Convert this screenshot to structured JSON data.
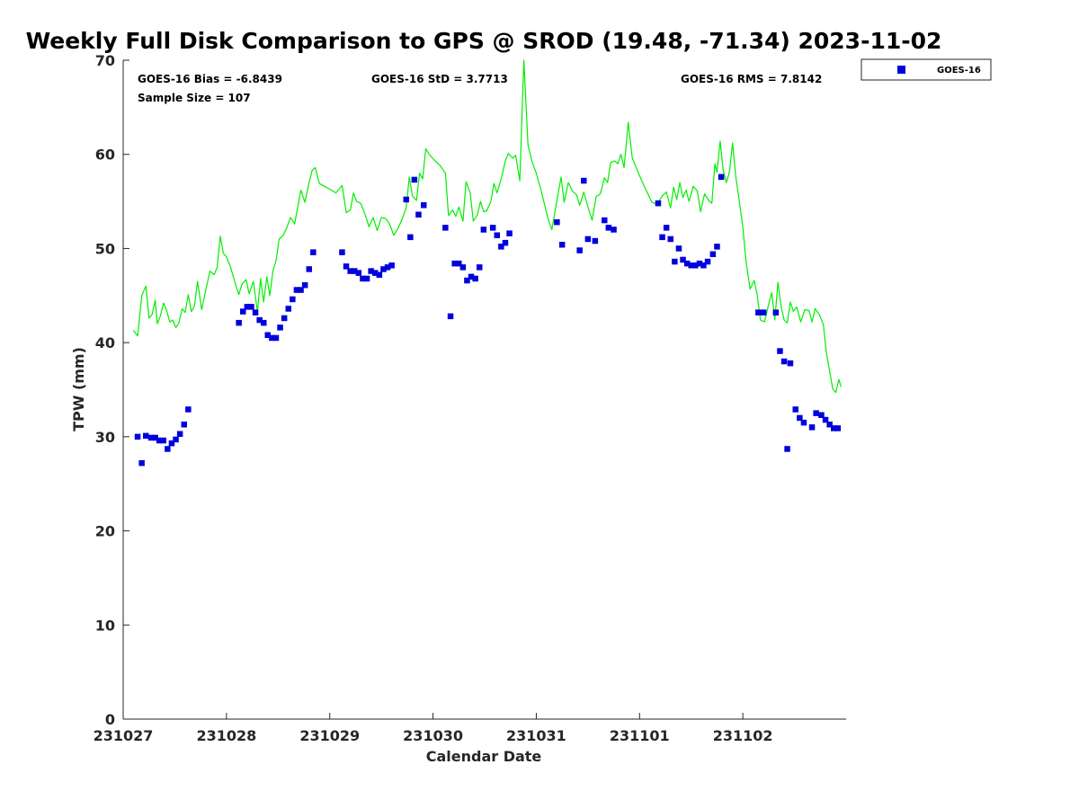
{
  "chart_data": {
    "type": "scatter",
    "title": "Weekly Full Disk Comparison to GPS @ SROD (19.48, -71.34) 2023-11-02",
    "xlabel": "Calendar Date",
    "ylabel": "TPW (mm)",
    "xlim": [
      0,
      7
    ],
    "ylim": [
      0,
      70
    ],
    "x_tick_labels": [
      "231027",
      "231028",
      "231029",
      "231030",
      "231031",
      "231101",
      "231102"
    ],
    "y_ticks": [
      0,
      10,
      20,
      30,
      40,
      50,
      60,
      70
    ],
    "y_tick_labels": [
      "0",
      "10",
      "20",
      "30",
      "40",
      "50",
      "60",
      "70"
    ],
    "stats": {
      "bias": "GOES-16 Bias = -6.8439",
      "std": "GOES-16 StD = 3.7713",
      "rms": "GOES-16 RMS = 7.8142",
      "sample": "Sample Size = 107"
    },
    "legend": {
      "label": "GOES-16",
      "color": "#0000dd",
      "position": "top-right"
    },
    "colors": {
      "goes": "#0000dd",
      "gps": "#00ee00"
    },
    "series": [
      {
        "name": "GOES-16",
        "marker": "square",
        "points": [
          [
            0.14,
            30.0
          ],
          [
            0.18,
            27.2
          ],
          [
            0.22,
            30.1
          ],
          [
            0.27,
            29.9
          ],
          [
            0.31,
            29.9
          ],
          [
            0.35,
            29.6
          ],
          [
            0.39,
            29.6
          ],
          [
            0.43,
            28.7
          ],
          [
            0.47,
            29.3
          ],
          [
            0.51,
            29.7
          ],
          [
            0.55,
            30.3
          ],
          [
            0.59,
            31.3
          ],
          [
            0.63,
            32.9
          ],
          [
            1.12,
            42.1
          ],
          [
            1.16,
            43.3
          ],
          [
            1.2,
            43.8
          ],
          [
            1.24,
            43.8
          ],
          [
            1.28,
            43.2
          ],
          [
            1.32,
            42.4
          ],
          [
            1.36,
            42.1
          ],
          [
            1.4,
            40.8
          ],
          [
            1.44,
            40.5
          ],
          [
            1.48,
            40.5
          ],
          [
            1.52,
            41.6
          ],
          [
            1.56,
            42.6
          ],
          [
            1.6,
            43.6
          ],
          [
            1.64,
            44.6
          ],
          [
            1.68,
            45.6
          ],
          [
            1.72,
            45.6
          ],
          [
            1.76,
            46.1
          ],
          [
            1.8,
            47.8
          ],
          [
            1.84,
            49.6
          ],
          [
            2.12,
            49.6
          ],
          [
            2.16,
            48.1
          ],
          [
            2.2,
            47.6
          ],
          [
            2.24,
            47.6
          ],
          [
            2.28,
            47.4
          ],
          [
            2.32,
            46.8
          ],
          [
            2.36,
            46.8
          ],
          [
            2.4,
            47.6
          ],
          [
            2.44,
            47.4
          ],
          [
            2.48,
            47.2
          ],
          [
            2.52,
            47.8
          ],
          [
            2.56,
            48.0
          ],
          [
            2.6,
            48.2
          ],
          [
            2.74,
            55.2
          ],
          [
            2.78,
            51.2
          ],
          [
            2.82,
            57.3
          ],
          [
            2.86,
            53.6
          ],
          [
            2.91,
            54.6
          ],
          [
            3.12,
            52.2
          ],
          [
            3.17,
            42.8
          ],
          [
            3.21,
            48.4
          ],
          [
            3.25,
            48.4
          ],
          [
            3.29,
            48.0
          ],
          [
            3.33,
            46.6
          ],
          [
            3.37,
            47.0
          ],
          [
            3.41,
            46.8
          ],
          [
            3.45,
            48.0
          ],
          [
            3.49,
            52.0
          ],
          [
            3.58,
            52.2
          ],
          [
            3.62,
            51.4
          ],
          [
            3.66,
            50.2
          ],
          [
            3.7,
            50.6
          ],
          [
            3.74,
            51.6
          ],
          [
            4.2,
            52.8
          ],
          [
            4.25,
            50.4
          ],
          [
            4.42,
            49.8
          ],
          [
            4.46,
            57.2
          ],
          [
            4.5,
            51.0
          ],
          [
            4.57,
            50.8
          ],
          [
            4.66,
            53.0
          ],
          [
            4.7,
            52.2
          ],
          [
            4.75,
            52.0
          ],
          [
            5.18,
            54.8
          ],
          [
            5.22,
            51.2
          ],
          [
            5.26,
            52.2
          ],
          [
            5.3,
            51.0
          ],
          [
            5.34,
            48.6
          ],
          [
            5.38,
            50.0
          ],
          [
            5.42,
            48.8
          ],
          [
            5.46,
            48.4
          ],
          [
            5.5,
            48.2
          ],
          [
            5.54,
            48.2
          ],
          [
            5.58,
            48.4
          ],
          [
            5.62,
            48.2
          ],
          [
            5.66,
            48.6
          ],
          [
            5.71,
            49.4
          ],
          [
            5.75,
            50.2
          ],
          [
            5.79,
            57.6
          ],
          [
            6.15,
            43.2
          ],
          [
            6.2,
            43.2
          ],
          [
            6.32,
            43.2
          ],
          [
            6.36,
            39.1
          ],
          [
            6.4,
            38.0
          ],
          [
            6.43,
            28.7
          ],
          [
            6.46,
            37.8
          ],
          [
            6.51,
            32.9
          ],
          [
            6.55,
            32.0
          ],
          [
            6.59,
            31.5
          ],
          [
            6.67,
            31.0
          ],
          [
            6.71,
            32.5
          ],
          [
            6.76,
            32.3
          ],
          [
            6.8,
            31.8
          ],
          [
            6.84,
            31.3
          ],
          [
            6.88,
            30.9
          ],
          [
            6.92,
            30.9
          ]
        ]
      },
      {
        "name": "GPS",
        "marker": "line",
        "points": [
          [
            0.1,
            41.3
          ],
          [
            0.14,
            40.7
          ],
          [
            0.18,
            45.0
          ],
          [
            0.22,
            46.0
          ],
          [
            0.25,
            42.6
          ],
          [
            0.28,
            43.0
          ],
          [
            0.31,
            44.5
          ],
          [
            0.33,
            42.0
          ],
          [
            0.36,
            42.8
          ],
          [
            0.39,
            44.2
          ],
          [
            0.42,
            43.5
          ],
          [
            0.45,
            42.2
          ],
          [
            0.48,
            42.4
          ],
          [
            0.51,
            41.6
          ],
          [
            0.54,
            42.1
          ],
          [
            0.57,
            43.6
          ],
          [
            0.6,
            43.2
          ],
          [
            0.63,
            45.1
          ],
          [
            0.66,
            43.3
          ],
          [
            0.69,
            43.9
          ],
          [
            0.72,
            46.5
          ],
          [
            0.76,
            43.5
          ],
          [
            0.8,
            45.6
          ],
          [
            0.84,
            47.6
          ],
          [
            0.88,
            47.2
          ],
          [
            0.91,
            48.0
          ],
          [
            0.94,
            51.3
          ],
          [
            0.97,
            49.5
          ],
          [
            1.0,
            49.1
          ],
          [
            1.04,
            48.0
          ],
          [
            1.08,
            46.5
          ],
          [
            1.12,
            45.1
          ],
          [
            1.15,
            46.2
          ],
          [
            1.19,
            46.7
          ],
          [
            1.22,
            45.2
          ],
          [
            1.26,
            46.5
          ],
          [
            1.3,
            43.3
          ],
          [
            1.33,
            46.8
          ],
          [
            1.36,
            44.3
          ],
          [
            1.39,
            47.0
          ],
          [
            1.42,
            45.0
          ],
          [
            1.45,
            47.6
          ],
          [
            1.48,
            48.7
          ],
          [
            1.51,
            51.0
          ],
          [
            1.55,
            51.4
          ],
          [
            1.58,
            52.1
          ],
          [
            1.62,
            53.3
          ],
          [
            1.66,
            52.6
          ],
          [
            1.69,
            54.4
          ],
          [
            1.72,
            56.2
          ],
          [
            1.76,
            54.9
          ],
          [
            1.8,
            57.0
          ],
          [
            1.83,
            58.3
          ],
          [
            1.86,
            58.6
          ],
          [
            1.9,
            56.9
          ],
          [
            1.95,
            56.6
          ],
          [
            2.0,
            56.3
          ],
          [
            2.06,
            55.9
          ],
          [
            2.12,
            56.7
          ],
          [
            2.16,
            53.8
          ],
          [
            2.2,
            54.1
          ],
          [
            2.23,
            55.9
          ],
          [
            2.26,
            55.0
          ],
          [
            2.3,
            54.8
          ],
          [
            2.34,
            53.7
          ],
          [
            2.38,
            52.3
          ],
          [
            2.42,
            53.3
          ],
          [
            2.46,
            51.9
          ],
          [
            2.5,
            53.3
          ],
          [
            2.54,
            53.2
          ],
          [
            2.58,
            52.6
          ],
          [
            2.62,
            51.4
          ],
          [
            2.66,
            52.1
          ],
          [
            2.7,
            53.1
          ],
          [
            2.74,
            54.3
          ],
          [
            2.77,
            57.6
          ],
          [
            2.8,
            55.6
          ],
          [
            2.84,
            55.1
          ],
          [
            2.87,
            58.0
          ],
          [
            2.9,
            57.4
          ],
          [
            2.93,
            60.6
          ],
          [
            2.97,
            59.9
          ],
          [
            3.02,
            59.3
          ],
          [
            3.07,
            58.8
          ],
          [
            3.12,
            58.0
          ],
          [
            3.15,
            53.5
          ],
          [
            3.19,
            54.1
          ],
          [
            3.22,
            53.4
          ],
          [
            3.25,
            54.4
          ],
          [
            3.29,
            52.9
          ],
          [
            3.32,
            57.1
          ],
          [
            3.36,
            55.9
          ],
          [
            3.39,
            52.9
          ],
          [
            3.43,
            53.6
          ],
          [
            3.46,
            55.0
          ],
          [
            3.49,
            53.9
          ],
          [
            3.52,
            54.0
          ],
          [
            3.56,
            55.0
          ],
          [
            3.59,
            56.9
          ],
          [
            3.62,
            55.9
          ],
          [
            3.66,
            57.4
          ],
          [
            3.7,
            59.3
          ],
          [
            3.73,
            60.1
          ],
          [
            3.77,
            59.6
          ],
          [
            3.8,
            59.9
          ],
          [
            3.84,
            57.2
          ],
          [
            3.88,
            70.0
          ],
          [
            3.92,
            61.0
          ],
          [
            3.96,
            59.2
          ],
          [
            4.0,
            58.0
          ],
          [
            4.05,
            56.0
          ],
          [
            4.11,
            53.3
          ],
          [
            4.15,
            52.0
          ],
          [
            4.2,
            55.1
          ],
          [
            4.24,
            57.6
          ],
          [
            4.27,
            54.9
          ],
          [
            4.31,
            57.0
          ],
          [
            4.35,
            56.1
          ],
          [
            4.39,
            55.7
          ],
          [
            4.42,
            54.6
          ],
          [
            4.46,
            56.0
          ],
          [
            4.5,
            54.4
          ],
          [
            4.54,
            53.0
          ],
          [
            4.58,
            55.5
          ],
          [
            4.62,
            55.8
          ],
          [
            4.66,
            57.5
          ],
          [
            4.69,
            57.0
          ],
          [
            4.72,
            59.1
          ],
          [
            4.76,
            59.3
          ],
          [
            4.79,
            59.0
          ],
          [
            4.82,
            60.0
          ],
          [
            4.85,
            58.6
          ],
          [
            4.89,
            63.4
          ],
          [
            4.93,
            59.6
          ],
          [
            4.99,
            58.0
          ],
          [
            5.05,
            56.5
          ],
          [
            5.12,
            54.9
          ],
          [
            5.17,
            54.7
          ],
          [
            5.22,
            55.6
          ],
          [
            5.26,
            56.0
          ],
          [
            5.3,
            54.3
          ],
          [
            5.33,
            56.5
          ],
          [
            5.36,
            55.2
          ],
          [
            5.39,
            57.0
          ],
          [
            5.42,
            55.4
          ],
          [
            5.45,
            56.2
          ],
          [
            5.48,
            55.0
          ],
          [
            5.52,
            56.6
          ],
          [
            5.56,
            56.1
          ],
          [
            5.59,
            53.9
          ],
          [
            5.63,
            55.8
          ],
          [
            5.67,
            55.1
          ],
          [
            5.7,
            54.8
          ],
          [
            5.73,
            59.0
          ],
          [
            5.75,
            58.1
          ],
          [
            5.78,
            61.4
          ],
          [
            5.81,
            58.3
          ],
          [
            5.84,
            57.0
          ],
          [
            5.87,
            58.1
          ],
          [
            5.9,
            61.2
          ],
          [
            5.93,
            57.8
          ],
          [
            5.97,
            54.7
          ],
          [
            6.0,
            52.3
          ],
          [
            6.03,
            48.7
          ],
          [
            6.07,
            45.7
          ],
          [
            6.11,
            46.6
          ],
          [
            6.14,
            45.0
          ],
          [
            6.17,
            42.4
          ],
          [
            6.21,
            42.2
          ],
          [
            6.25,
            44.1
          ],
          [
            6.28,
            45.3
          ],
          [
            6.31,
            42.4
          ],
          [
            6.34,
            46.4
          ],
          [
            6.37,
            43.9
          ],
          [
            6.4,
            42.4
          ],
          [
            6.43,
            42.1
          ],
          [
            6.46,
            44.3
          ],
          [
            6.49,
            43.3
          ],
          [
            6.52,
            43.8
          ],
          [
            6.56,
            42.2
          ],
          [
            6.6,
            43.5
          ],
          [
            6.64,
            43.4
          ],
          [
            6.67,
            42.2
          ],
          [
            6.7,
            43.6
          ],
          [
            6.74,
            43.0
          ],
          [
            6.78,
            41.9
          ],
          [
            6.81,
            38.8
          ],
          [
            6.84,
            37.0
          ],
          [
            6.87,
            35.1
          ],
          [
            6.9,
            34.7
          ],
          [
            6.93,
            36.1
          ],
          [
            6.95,
            35.3
          ]
        ]
      }
    ]
  }
}
